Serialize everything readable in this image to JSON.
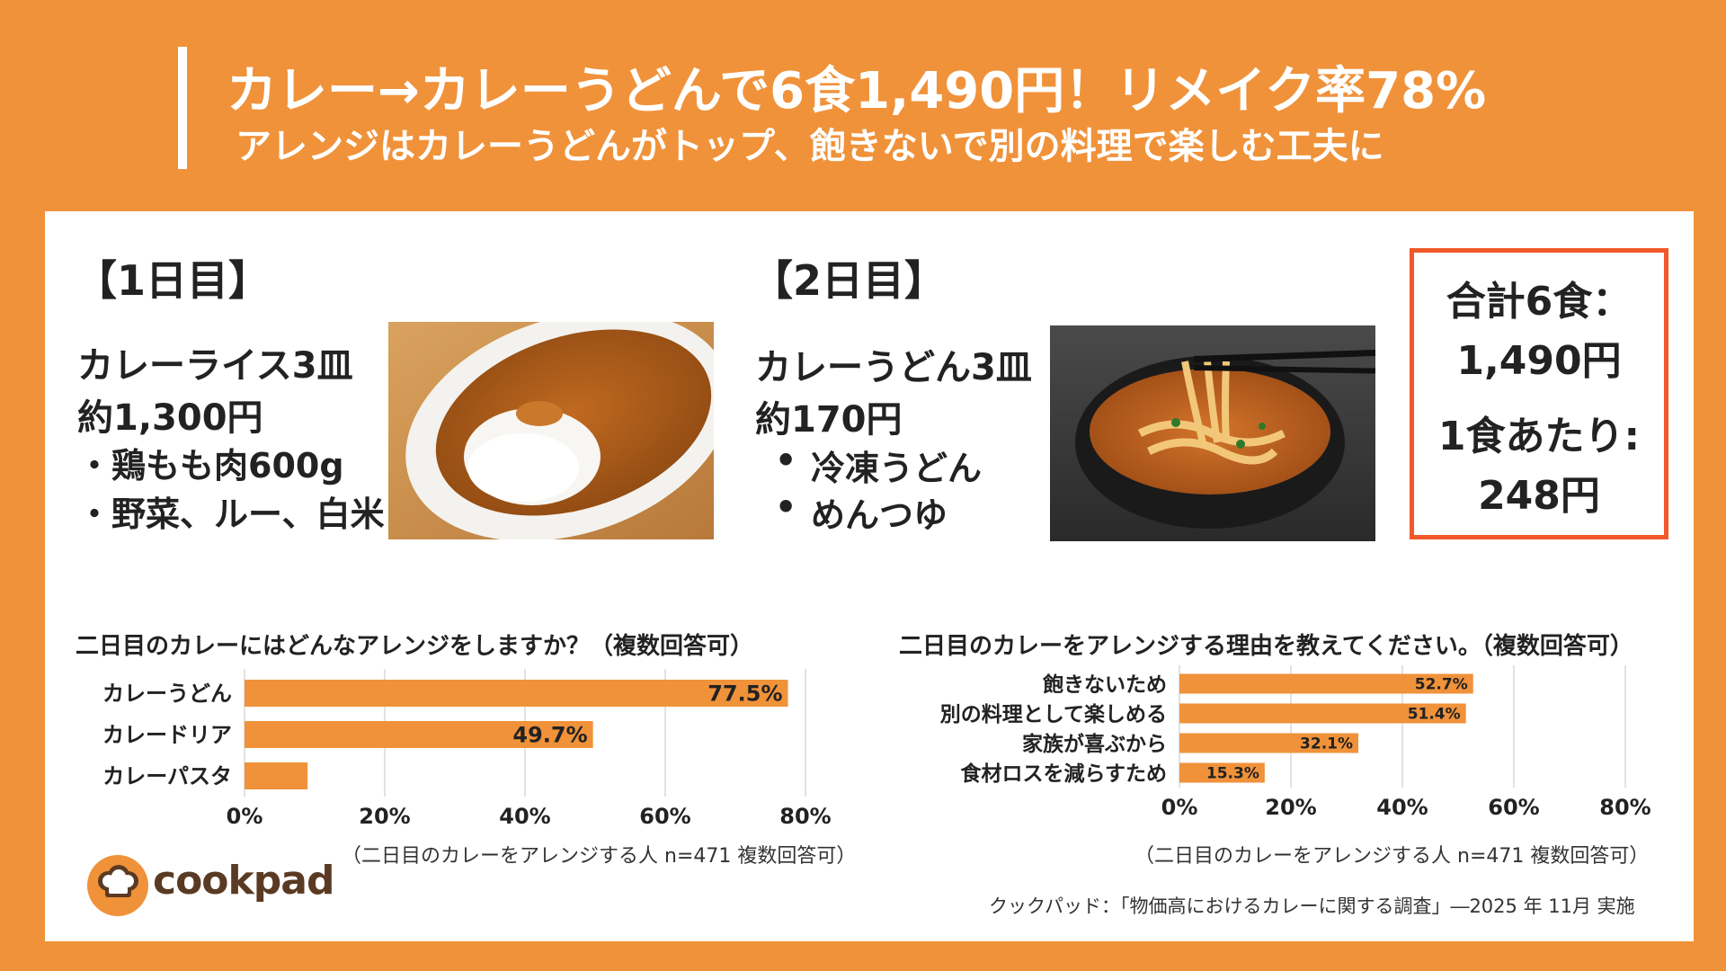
{
  "header": {
    "title": "カレー→カレーうどんで6食1,490円！リメイク率78%",
    "subtitle": "アレンジはカレーうどんがトップ、飽きないで別の料理で楽しむ工夫に"
  },
  "day1": {
    "heading": "【1日目】",
    "dish": "カレーライス3皿",
    "price": "約1,300円",
    "ingredients": [
      "・鶏もも肉600g",
      "・野菜、ルー、白米"
    ]
  },
  "day2": {
    "heading": "【2日目】",
    "dish": "カレーうどん3皿",
    "price": "約170円",
    "ingredients": [
      "冷凍うどん",
      "めんつゆ"
    ],
    "bullet": "•"
  },
  "total": {
    "line1": "合計6食：",
    "line2": "1,490円",
    "line3": "1食あたり:",
    "line4": "248円"
  },
  "chart_data": [
    {
      "type": "bar",
      "orientation": "horizontal",
      "title": "二日目のカレーにはどんなアレンジをしますか？（複数回答可）",
      "categories": [
        "カレーうどん",
        "カレードリア",
        "カレーパスタ"
      ],
      "values": [
        77.5,
        49.7,
        9
      ],
      "value_labels": [
        "77.5%",
        "49.7%",
        ""
      ],
      "xlim": [
        0,
        80
      ],
      "ticks": [
        0,
        20,
        40,
        60,
        80
      ],
      "tick_labels": [
        "0%",
        "20%",
        "40%",
        "60%",
        "80%"
      ],
      "note": "（二日目のカレーをアレンジする人 n=471 複数回答可）",
      "grid": true
    },
    {
      "type": "bar",
      "orientation": "horizontal",
      "title": "二日目のカレーをアレンジする理由を教えてください。（複数回答可）",
      "categories": [
        "飽きないため",
        "別の料理として楽しめる",
        "家族が喜ぶから",
        "食材ロスを減らすため"
      ],
      "values": [
        52.7,
        51.4,
        32.1,
        15.3
      ],
      "value_labels": [
        "52.7%",
        "51.4%",
        "32.1%",
        "15.3%"
      ],
      "xlim": [
        0,
        80
      ],
      "ticks": [
        0,
        20,
        40,
        60,
        80
      ],
      "tick_labels": [
        "0%",
        "20%",
        "40%",
        "60%",
        "80%"
      ],
      "note": "（二日目のカレーをアレンジする人 n=471 複数回答可）",
      "grid": true
    }
  ],
  "footer": {
    "logo_text": "cookpad",
    "source": "クックパッド：「物価高におけるカレーに関する調査」―2025 年 11月 実施"
  },
  "colors": {
    "background": "#F0923A",
    "bar": "#F0923A",
    "total_border": "#F0592A"
  },
  "icons": {
    "logo": "chef-hat-icon"
  }
}
